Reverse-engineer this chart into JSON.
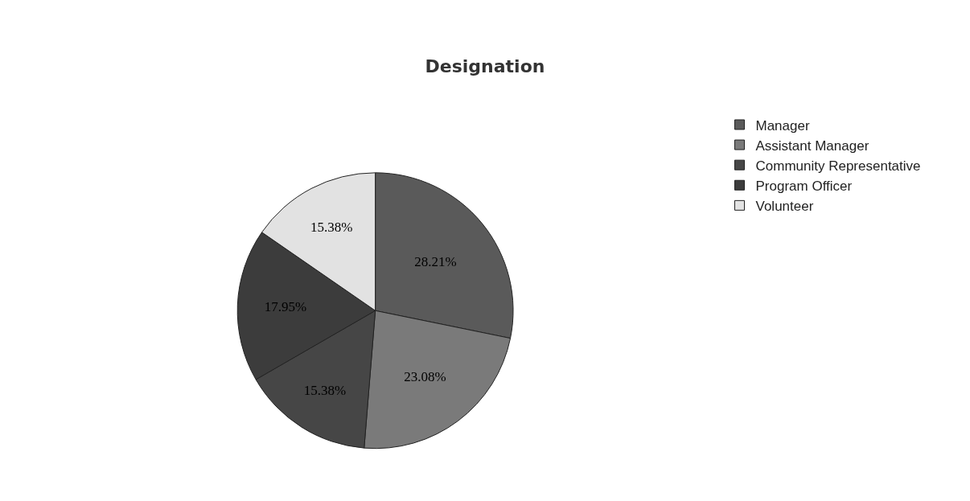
{
  "chart_data": {
    "type": "pie",
    "title": "Designation",
    "categories": [
      "Manager",
      "Assistant Manager",
      "Community Representative",
      "Program Officer",
      "Volunteer"
    ],
    "values": [
      28.21,
      23.08,
      15.38,
      17.95,
      15.38
    ],
    "value_labels": [
      "28.21%",
      "23.08%",
      "15.38%",
      "17.95%",
      "15.38%"
    ],
    "colors": [
      "#5a5a5a",
      "#7a7a7a",
      "#464646",
      "#3c3c3c",
      "#e2e2e2"
    ],
    "legend": "top right"
  }
}
